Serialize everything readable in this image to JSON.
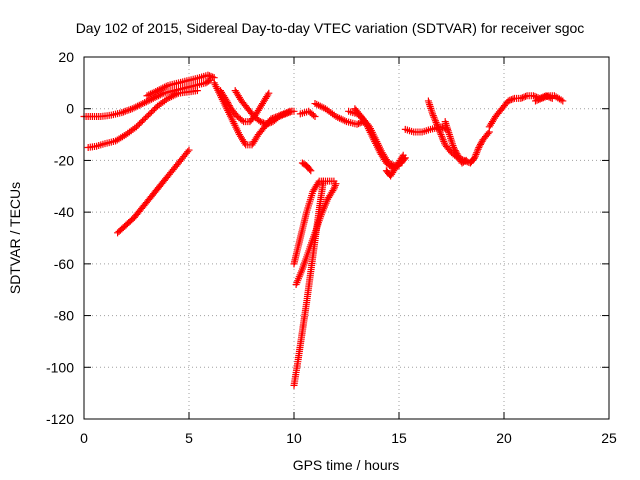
{
  "chart_data": {
    "type": "scatter",
    "title": "Day 102 of 2015, Sidereal Day-to-day VTEC variation (SDTVAR) for receiver sgoc",
    "xlabel": "GPS time / hours",
    "ylabel": "SDTVAR / TECUs",
    "xlim": [
      0,
      25
    ],
    "ylim": [
      -120,
      20
    ],
    "x_ticks": [
      0,
      5,
      10,
      15,
      20,
      25
    ],
    "y_ticks": [
      -120,
      -100,
      -80,
      -60,
      -40,
      -20,
      0,
      20
    ],
    "x_tick_labels": [
      "0",
      "5",
      "10",
      "15",
      "20",
      "25"
    ],
    "y_tick_labels": [
      "-120",
      "-100",
      "-80",
      "-60",
      "-40",
      "-20",
      "0",
      "20"
    ],
    "grid": true,
    "marker": "plus",
    "color": "#ff0000",
    "series": [
      {
        "x": [
          0.0,
          0.3,
          0.8,
          1.3,
          1.8,
          2.3,
          2.8,
          3.3,
          3.8,
          4.3,
          4.8,
          5.3,
          5.8,
          6.0
        ],
        "y": [
          -3,
          -3,
          -3,
          -2.5,
          -1.5,
          0,
          2,
          4,
          6,
          7,
          8,
          9,
          10,
          11
        ]
      },
      {
        "x": [
          0.2,
          0.6,
          1.0,
          1.5,
          2.0,
          2.5,
          3.0,
          3.5,
          4.0,
          4.5,
          5.0,
          5.4
        ],
        "y": [
          -15,
          -14.5,
          -13.5,
          -12.5,
          -10,
          -7,
          -3,
          1,
          4,
          6,
          6.5,
          7
        ]
      },
      {
        "x": [
          1.6,
          2.0,
          2.4,
          2.8,
          3.2,
          3.6,
          4.0,
          4.5,
          5.0
        ],
        "y": [
          -48,
          -45,
          -42,
          -38,
          -34,
          -30,
          -26,
          -21,
          -16
        ]
      },
      {
        "x": [
          3.0,
          3.5,
          4.0,
          4.5,
          5.0,
          5.5,
          5.9,
          6.2
        ],
        "y": [
          5,
          7,
          9,
          10,
          11,
          12,
          13,
          12
        ]
      },
      {
        "x": [
          6.2,
          6.5,
          6.8,
          7.1,
          7.4,
          7.7,
          8.0,
          8.3,
          8.6,
          8.9,
          9.2,
          9.5,
          9.8,
          10.0
        ],
        "y": [
          10,
          5,
          0,
          -5,
          -10,
          -14,
          -14,
          -10,
          -7,
          -4,
          -3,
          -2,
          -1,
          -1
        ]
      },
      {
        "x": [
          6.5,
          6.8,
          7.0,
          7.3,
          7.6,
          7.9,
          8.2,
          8.5,
          8.8
        ],
        "y": [
          7,
          3,
          0,
          -3,
          -5,
          -5,
          -2,
          2,
          6
        ]
      },
      {
        "x": [
          7.2,
          7.5,
          7.8,
          8.1,
          8.4,
          8.7,
          9.0,
          9.3,
          9.6,
          9.9
        ],
        "y": [
          7,
          3,
          0,
          -3,
          -5,
          -6,
          -5,
          -3,
          -2,
          -1
        ]
      },
      {
        "x": [
          10.0,
          10.2,
          10.4,
          10.6,
          10.8,
          11.0,
          11.2,
          11.4
        ],
        "y": [
          -107,
          -97,
          -86,
          -75,
          -63,
          -51,
          -39,
          -28
        ]
      },
      {
        "x": [
          10.1,
          10.4,
          10.7,
          11.0,
          11.3,
          11.6,
          11.9,
          12.0
        ],
        "y": [
          -68,
          -62,
          -55,
          -48,
          -41,
          -35,
          -31,
          -29
        ]
      },
      {
        "x": [
          10.0,
          10.3,
          10.6,
          10.9,
          11.2,
          11.5,
          11.9
        ],
        "y": [
          -60,
          -50,
          -40,
          -32,
          -28,
          -28,
          -28
        ]
      },
      {
        "x": [
          10.4,
          10.6,
          10.8
        ],
        "y": [
          -21,
          -22,
          -24
        ]
      },
      {
        "x": [
          10.3,
          10.7,
          11.0
        ],
        "y": [
          -2,
          -1,
          -3
        ]
      },
      {
        "x": [
          11.0,
          11.5,
          12.0,
          12.5,
          13.0,
          13.3
        ],
        "y": [
          2,
          0,
          -3,
          -5,
          -6,
          -5
        ]
      },
      {
        "x": [
          12.6,
          13.0,
          13.3,
          13.6,
          13.9,
          14.2,
          14.5,
          14.8,
          15.1,
          15.3
        ],
        "y": [
          -1,
          -2,
          -4,
          -7,
          -12,
          -17,
          -21,
          -22,
          -21,
          -19
        ]
      },
      {
        "x": [
          12.9,
          13.2,
          13.5,
          13.8,
          14.1,
          14.4,
          14.7,
          15.0
        ],
        "y": [
          0,
          -3,
          -7,
          -12,
          -17,
          -21,
          -23,
          -22
        ]
      },
      {
        "x": [
          14.4,
          14.6,
          14.9,
          15.2
        ],
        "y": [
          -24,
          -26,
          -22,
          -18
        ]
      },
      {
        "x": [
          15.3,
          15.7,
          16.1,
          16.5,
          17.0,
          17.3
        ],
        "y": [
          -8,
          -9,
          -9,
          -8,
          -7,
          -8
        ]
      },
      {
        "x": [
          16.4,
          16.6,
          16.8,
          17.0,
          17.2,
          17.5,
          17.8,
          18.1,
          18.4,
          18.6,
          18.8,
          19.0,
          19.3
        ],
        "y": [
          3,
          -2,
          -6,
          -10,
          -14,
          -17,
          -19,
          -20,
          -21,
          -19,
          -15,
          -12,
          -9
        ]
      },
      {
        "x": [
          17.2,
          17.4,
          17.6,
          17.8,
          18.0,
          18.2
        ],
        "y": [
          -5,
          -10,
          -15,
          -18,
          -21,
          -20
        ]
      },
      {
        "x": [
          19.3,
          19.6,
          19.9,
          20.2,
          20.5,
          20.8,
          21.1,
          21.4,
          21.7,
          22.0,
          22.3
        ],
        "y": [
          -7,
          -3,
          0,
          3,
          4,
          4,
          5,
          5,
          4,
          5,
          4
        ]
      },
      {
        "x": [
          21.5,
          21.8,
          22.1,
          22.4,
          22.8
        ],
        "y": [
          3,
          4,
          5,
          5,
          3
        ]
      }
    ]
  }
}
